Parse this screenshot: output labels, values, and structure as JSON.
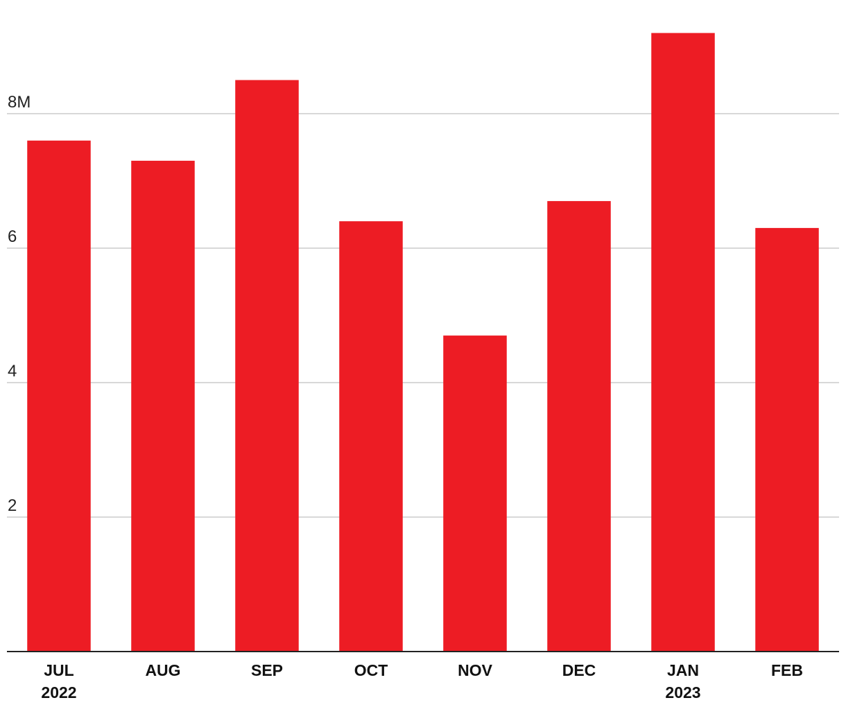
{
  "chart_data": {
    "type": "bar",
    "title": "",
    "xlabel": "",
    "ylabel": "",
    "categories": [
      "JUL",
      "AUG",
      "SEP",
      "OCT",
      "NOV",
      "DEC",
      "JAN",
      "FEB"
    ],
    "year_labels": [
      "2022",
      "",
      "",
      "",
      "",
      "",
      "2023",
      ""
    ],
    "values": [
      7.6,
      7.3,
      8.5,
      6.4,
      4.7,
      6.7,
      9.2,
      6.3
    ],
    "ylim": [
      0,
      9.4
    ],
    "yticks": [
      2,
      4,
      6,
      8
    ],
    "ytick_labels": [
      "2",
      "4",
      "6",
      "8M"
    ],
    "grid": true,
    "bar_color": "#ED1C24",
    "grid_color": "#cccccc",
    "axis_color": "#222222"
  }
}
